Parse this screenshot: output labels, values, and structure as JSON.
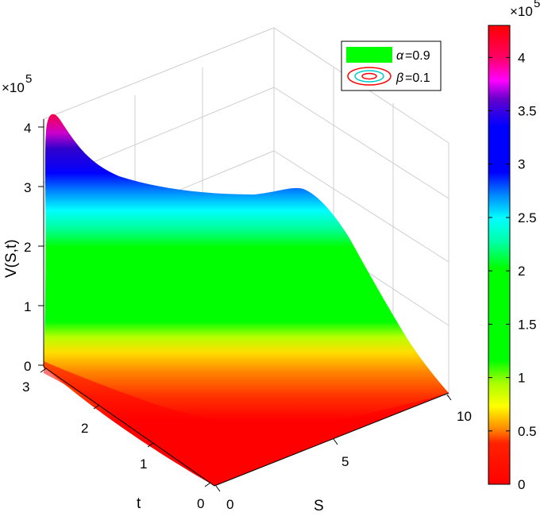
{
  "chart_data": {
    "type": "surface",
    "zlabel": "V(S,t)",
    "xlabel": "S",
    "ylabel": "t",
    "z_multiplier": "×10",
    "z_exponent": "5",
    "xlim": [
      0,
      10
    ],
    "ylim": [
      0,
      3
    ],
    "zlim": [
      0,
      4.2
    ],
    "z_ticks": [
      "0",
      "1",
      "2",
      "3",
      "4"
    ],
    "x_ticks": [
      "0",
      "5",
      "10"
    ],
    "y_ticks": [
      "0",
      "1",
      "2",
      "3"
    ],
    "colorbar": {
      "ticks": [
        "0",
        "0.5",
        "1",
        "1.5",
        "2",
        "2.5",
        "3",
        "3.5",
        "4"
      ],
      "multiplier": "×10",
      "exponent": "5",
      "range": [
        0,
        4.3
      ]
    },
    "legend": {
      "position": "top-right",
      "entries": [
        {
          "symbol": "α",
          "text": "=0.9",
          "color": "#00ff00"
        },
        {
          "symbol": "β",
          "text": "=0.1",
          "color": "#ff0000"
        }
      ]
    },
    "surface_profile": {
      "S": [
        0,
        1,
        2,
        3,
        4,
        5,
        6,
        7,
        8,
        9,
        10
      ],
      "V_at_t_max": [
        4.2,
        3.2,
        2.9,
        2.8,
        2.8,
        2.85,
        2.9,
        2.85,
        2.3,
        1.2,
        0.2
      ],
      "V_at_t_zero": [
        0,
        0,
        0,
        0,
        0,
        0,
        0,
        0,
        0,
        0,
        0
      ]
    }
  }
}
